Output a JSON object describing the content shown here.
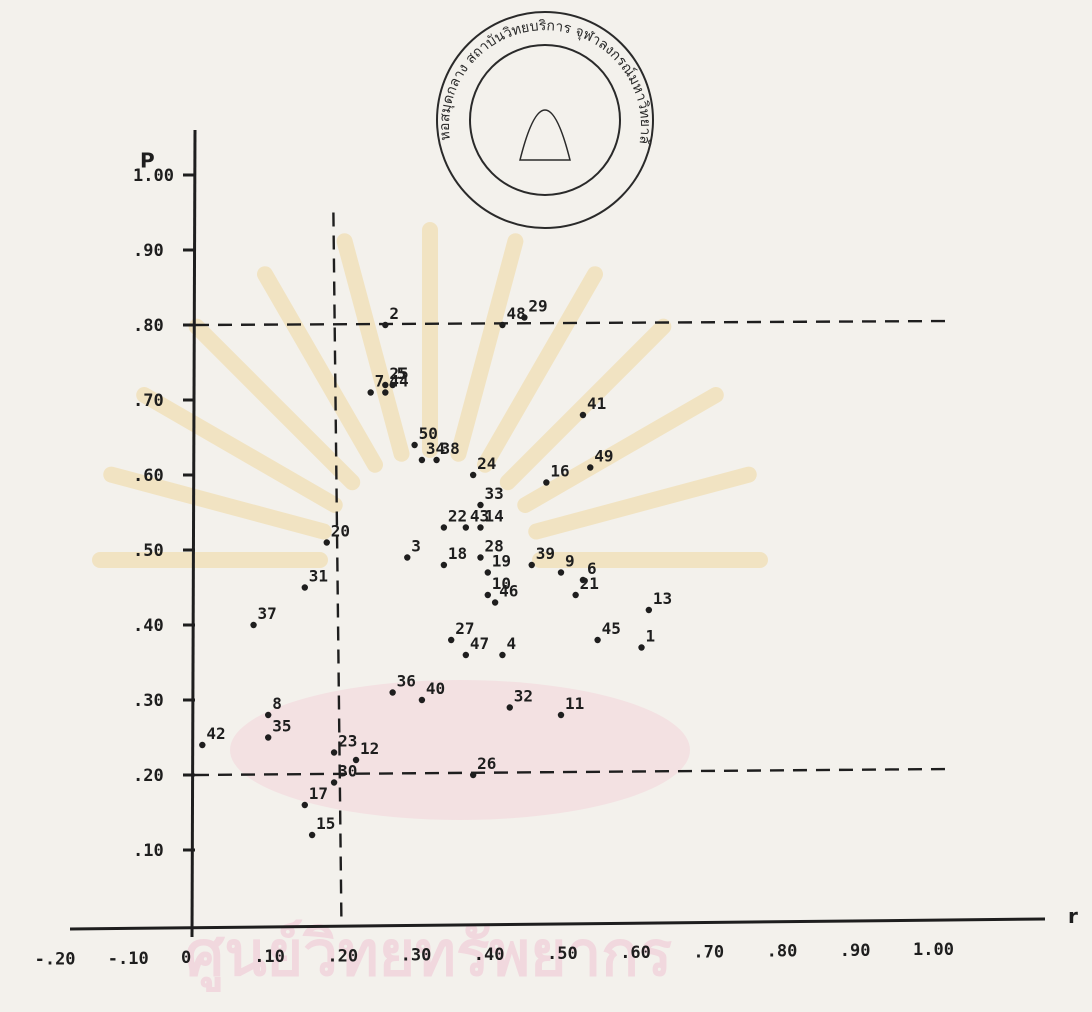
{
  "chart_data": {
    "type": "scatter",
    "xlabel": "r",
    "ylabel": "P",
    "xlim": [
      -0.2,
      1.1
    ],
    "ylim": [
      0.0,
      1.08
    ],
    "x_ticks": [
      "-.20",
      "-.10",
      "0",
      ".10",
      ".20",
      ".30",
      ".40",
      ".50",
      ".60",
      ".70",
      ".80",
      ".90",
      "1.00"
    ],
    "x_tick_values": [
      -0.2,
      -0.1,
      0.0,
      0.1,
      0.2,
      0.3,
      0.4,
      0.5,
      0.6,
      0.7,
      0.8,
      0.9,
      1.0
    ],
    "y_ticks": [
      ".10",
      ".20",
      ".30",
      ".40",
      ".50",
      ".60",
      ".70",
      ".80",
      ".90",
      "1.00"
    ],
    "y_tick_values": [
      0.1,
      0.2,
      0.3,
      0.4,
      0.5,
      0.6,
      0.7,
      0.8,
      0.9,
      1.0
    ],
    "reference_lines": {
      "horizontal": [
        0.2,
        0.8
      ],
      "vertical": [
        0.2
      ]
    },
    "points": [
      {
        "label": "2",
        "x": 0.26,
        "y": 0.8
      },
      {
        "label": "48",
        "x": 0.42,
        "y": 0.8
      },
      {
        "label": "29",
        "x": 0.45,
        "y": 0.81
      },
      {
        "label": "25",
        "x": 0.26,
        "y": 0.72
      },
      {
        "label": "5",
        "x": 0.27,
        "y": 0.72
      },
      {
        "label": "7",
        "x": 0.24,
        "y": 0.71
      },
      {
        "label": "44",
        "x": 0.26,
        "y": 0.71
      },
      {
        "label": "41",
        "x": 0.53,
        "y": 0.68
      },
      {
        "label": "50",
        "x": 0.3,
        "y": 0.64
      },
      {
        "label": "38",
        "x": 0.33,
        "y": 0.62
      },
      {
        "label": "34",
        "x": 0.31,
        "y": 0.62
      },
      {
        "label": "24",
        "x": 0.38,
        "y": 0.6
      },
      {
        "label": "16",
        "x": 0.48,
        "y": 0.59
      },
      {
        "label": "49",
        "x": 0.54,
        "y": 0.61
      },
      {
        "label": "33",
        "x": 0.39,
        "y": 0.56
      },
      {
        "label": "20",
        "x": 0.18,
        "y": 0.51
      },
      {
        "label": "22",
        "x": 0.34,
        "y": 0.53
      },
      {
        "label": "43",
        "x": 0.37,
        "y": 0.53
      },
      {
        "label": "14",
        "x": 0.39,
        "y": 0.53
      },
      {
        "label": "3",
        "x": 0.29,
        "y": 0.49
      },
      {
        "label": "28",
        "x": 0.39,
        "y": 0.49
      },
      {
        "label": "18",
        "x": 0.34,
        "y": 0.48
      },
      {
        "label": "19",
        "x": 0.4,
        "y": 0.47
      },
      {
        "label": "39",
        "x": 0.46,
        "y": 0.48
      },
      {
        "label": "9",
        "x": 0.5,
        "y": 0.47
      },
      {
        "label": "6",
        "x": 0.53,
        "y": 0.46
      },
      {
        "label": "31",
        "x": 0.15,
        "y": 0.45
      },
      {
        "label": "21",
        "x": 0.52,
        "y": 0.44
      },
      {
        "label": "10",
        "x": 0.4,
        "y": 0.44
      },
      {
        "label": "46",
        "x": 0.41,
        "y": 0.43
      },
      {
        "label": "13",
        "x": 0.62,
        "y": 0.42
      },
      {
        "label": "37",
        "x": 0.08,
        "y": 0.4
      },
      {
        "label": "27",
        "x": 0.35,
        "y": 0.38
      },
      {
        "label": "45",
        "x": 0.55,
        "y": 0.38
      },
      {
        "label": "1",
        "x": 0.61,
        "y": 0.37
      },
      {
        "label": "47",
        "x": 0.37,
        "y": 0.36
      },
      {
        "label": "4",
        "x": 0.42,
        "y": 0.36
      },
      {
        "label": "36",
        "x": 0.27,
        "y": 0.31
      },
      {
        "label": "40",
        "x": 0.31,
        "y": 0.3
      },
      {
        "label": "8",
        "x": 0.1,
        "y": 0.28
      },
      {
        "label": "32",
        "x": 0.43,
        "y": 0.29
      },
      {
        "label": "11",
        "x": 0.5,
        "y": 0.28
      },
      {
        "label": "42",
        "x": 0.01,
        "y": 0.24
      },
      {
        "label": "35",
        "x": 0.1,
        "y": 0.25
      },
      {
        "label": "23",
        "x": 0.19,
        "y": 0.23
      },
      {
        "label": "12",
        "x": 0.22,
        "y": 0.22
      },
      {
        "label": "26",
        "x": 0.38,
        "y": 0.2
      },
      {
        "label": "30",
        "x": 0.19,
        "y": 0.19
      },
      {
        "label": "17",
        "x": 0.15,
        "y": 0.16
      },
      {
        "label": "15",
        "x": 0.16,
        "y": 0.12
      }
    ]
  },
  "stamp": {
    "text": "หอสมุดกลาง สถาบันวิทยบริการ จุฬาลงกรณ์มหาวิทยาลัย"
  },
  "watermark": {
    "text": "ศูนย์วิทยทรัพยากร"
  }
}
